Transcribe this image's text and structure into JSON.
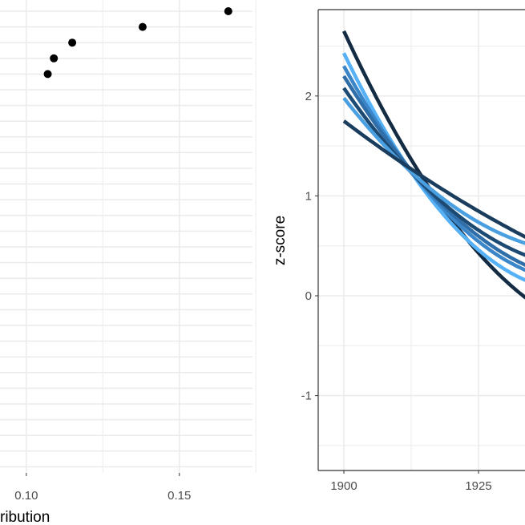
{
  "chart_data": [
    {
      "type": "scatter",
      "xlabel": "ribution",
      "x_ticks": [
        0.1,
        0.15
      ],
      "x_tick_labels": [
        "0.10",
        "0.15"
      ],
      "xlim": [
        0.0914,
        0.1739
      ],
      "grid": true,
      "rows": 30,
      "points": [
        {
          "row": 0,
          "x": 0.166
        },
        {
          "row": 1,
          "x": 0.138
        },
        {
          "row": 2,
          "x": 0.115
        },
        {
          "row": 3,
          "x": 0.109
        },
        {
          "row": 4,
          "x": 0.107
        }
      ]
    },
    {
      "type": "line",
      "ylabel": "z-score",
      "x_ticks": [
        1900,
        1925
      ],
      "x_tick_labels": [
        "1900",
        "1925"
      ],
      "y_ticks": [
        2,
        1,
        0,
        -1
      ],
      "y_tick_labels": [
        "2",
        "1",
        "0",
        "-1"
      ],
      "xlim": [
        1895.2,
        1933.6
      ],
      "ylim": [
        -1.75,
        2.86
      ],
      "grid": true,
      "x": [
        1900,
        1915,
        1934
      ],
      "series": [
        {
          "values": [
            2.65,
            1.15,
            -0.03
          ],
          "color": "#132b43"
        },
        {
          "values": [
            2.43,
            1.05,
            0.15
          ],
          "color": "#56b1f7"
        },
        {
          "values": [
            2.3,
            1.08,
            0.25
          ],
          "color": "#3a86c8"
        },
        {
          "values": [
            2.2,
            1.1,
            0.3
          ],
          "color": "#2f6ea8"
        },
        {
          "values": [
            2.08,
            1.1,
            0.4
          ],
          "color": "#1d4a73"
        },
        {
          "values": [
            1.98,
            1.12,
            0.52
          ],
          "color": "#4a9fe0"
        },
        {
          "values": [
            1.75,
            1.18,
            0.58
          ],
          "color": "#1a3d5e"
        }
      ]
    }
  ]
}
